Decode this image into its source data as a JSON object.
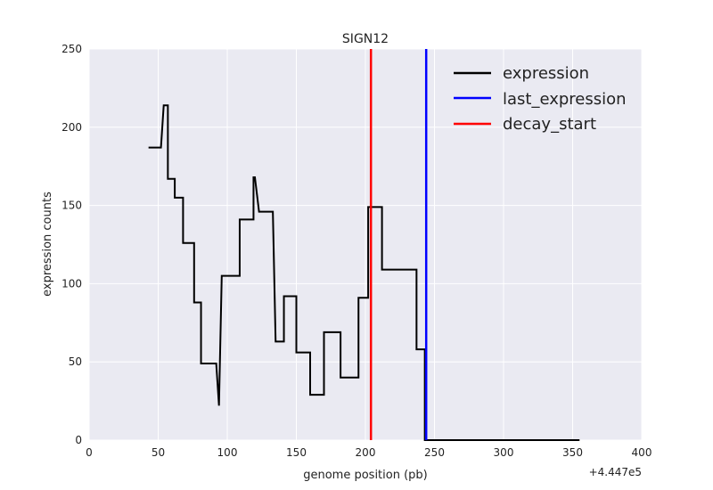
{
  "chart_data": {
    "type": "line",
    "title": "SIGN12",
    "xlabel": "genome position (pb)",
    "ylabel": "expression counts",
    "x_offset_label": "+4.447e5",
    "xlim": [
      0,
      400
    ],
    "ylim": [
      0,
      250
    ],
    "xticks": [
      0,
      50,
      100,
      150,
      200,
      250,
      300,
      350,
      400
    ],
    "yticks": [
      0,
      50,
      100,
      150,
      200,
      250
    ],
    "grid": true,
    "legend_position": "top-right",
    "series": [
      {
        "name": "expression",
        "color": "#000000",
        "x": [
          43,
          52,
          52,
          54,
          54,
          57,
          57,
          61,
          61,
          62,
          62,
          66,
          66,
          68,
          68,
          72,
          72,
          76,
          76,
          78,
          78,
          81,
          81,
          84,
          84,
          92,
          92,
          94,
          94,
          96,
          96,
          109,
          109,
          110,
          110,
          119,
          119,
          120,
          120,
          123,
          123,
          124,
          124,
          133,
          133,
          135,
          135,
          141,
          141,
          143,
          143,
          150,
          150,
          152,
          152,
          160,
          160,
          162,
          162,
          170,
          170,
          173,
          173,
          182,
          182,
          184,
          184,
          195,
          195,
          197,
          197,
          202,
          202,
          205,
          205,
          212,
          212,
          214,
          214,
          237,
          237,
          239,
          239,
          243,
          243,
          355
        ],
        "y": [
          187,
          187,
          187,
          214,
          214,
          214,
          167,
          167,
          167,
          167,
          155,
          155,
          155,
          155,
          126,
          126,
          126,
          126,
          88,
          88,
          88,
          88,
          49,
          49,
          49,
          49,
          49,
          22,
          22,
          105,
          105,
          105,
          141,
          141,
          141,
          141,
          168,
          168,
          168,
          146,
          146,
          146,
          146,
          146,
          146,
          63,
          63,
          63,
          92,
          92,
          92,
          92,
          56,
          56,
          56,
          56,
          29,
          29,
          29,
          29,
          69,
          69,
          69,
          69,
          40,
          40,
          40,
          40,
          91,
          91,
          91,
          91,
          149,
          149,
          149,
          149,
          109,
          109,
          109,
          109,
          58,
          58,
          58,
          58,
          0,
          0
        ]
      },
      {
        "name": "last_expression",
        "color": "#0000ff",
        "vline_x": 244
      },
      {
        "name": "decay_start",
        "color": "#ff0000",
        "vline_x": 204
      }
    ]
  }
}
